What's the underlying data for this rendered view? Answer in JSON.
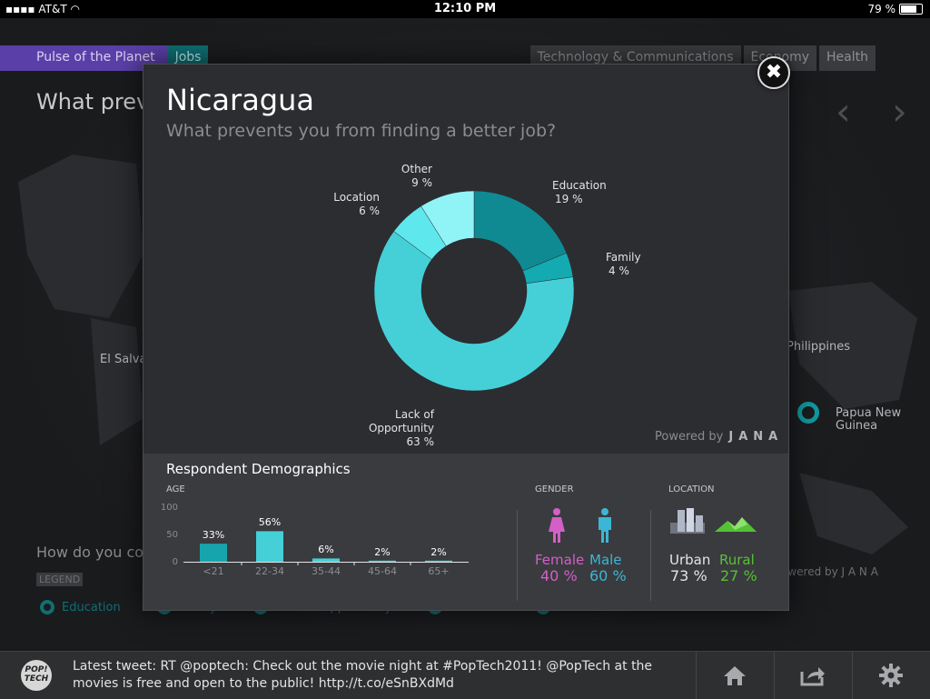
{
  "statusbar": {
    "carrier": "AT&T",
    "time": "12:10 PM",
    "battery": "79 %",
    "battery_level": 0.79
  },
  "background": {
    "nav_left": [
      "Pulse of the Planet",
      "Jobs"
    ],
    "nav_right": [
      "Technology & Communications",
      "Economy",
      "Health"
    ],
    "question": "What preve",
    "labels": {
      "el_salvador": "El Salva",
      "philippines": "Philippines",
      "png": "Papua New Guinea"
    },
    "how": "How do you co",
    "legend_title": "LEGEND",
    "legend_items": [
      "Education",
      "Family",
      "Lack of Opportunity",
      "Location",
      "Other"
    ],
    "powered": "owered by J A N A"
  },
  "modal": {
    "title": "Nicaragua",
    "subtitle": "What prevents you from finding a better job?",
    "powered_by": "Powered by",
    "powered_brand": "JANA"
  },
  "chart_data": [
    {
      "type": "pie",
      "title": "What prevents you from finding a better job?",
      "categories": [
        "Education",
        "Family",
        "Lack of Opportunity",
        "Location",
        "Other"
      ],
      "values": [
        19,
        4,
        63,
        6,
        9
      ],
      "value_labels": [
        "19 %",
        "4 %",
        "63 %",
        "6 %",
        "9 %"
      ],
      "colors": [
        "#0f8a92",
        "#14aab2",
        "#45d0d8",
        "#5ee8ee",
        "#90f4f7"
      ],
      "donut": true
    },
    {
      "type": "bar",
      "title": "AGE",
      "categories": [
        "<21",
        "22-34",
        "35-44",
        "45-64",
        "65+"
      ],
      "values": [
        33,
        56,
        6,
        2,
        2
      ],
      "value_labels": [
        "33%",
        "56%",
        "6%",
        "2%",
        "2%"
      ],
      "ylim": [
        0,
        100
      ],
      "yticks": [
        "100",
        "50",
        "0"
      ],
      "colors": [
        "#17a5ad",
        "#45d0d8",
        "#45d0d8",
        "#45d0d8",
        "#45d0d8"
      ]
    }
  ],
  "demographics": {
    "title": "Respondent Demographics",
    "age_label": "AGE",
    "gender_label": "GENDER",
    "location_label": "LOCATION",
    "female_label": "Female",
    "female_value": "40 %",
    "male_label": "Male",
    "male_value": "60 %",
    "urban_label": "Urban",
    "urban_value": "73 %",
    "rural_label": "Rural",
    "rural_value": "27 %",
    "colors": {
      "female": "#d35fc7",
      "male": "#3cb6d6",
      "urban": "#b0b8c8",
      "rural": "#55c233"
    }
  },
  "bottombar": {
    "logo_top": "POP!",
    "logo_bottom": "TECH",
    "tweet": "Latest tweet: RT @poptech: Check out the movie night at #PopTech2011! @PopTech at the movies is free and open to the public! http://t.co/eSnBXdMd",
    "icons": [
      "home-icon",
      "share-icon",
      "gear-icon"
    ]
  }
}
